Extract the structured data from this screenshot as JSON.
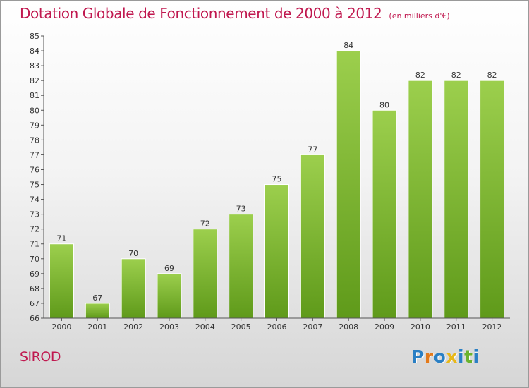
{
  "header": {
    "title": "Dotation Globale de Fonctionnement de 2000 à 2012",
    "subtitle": "(en milliers d'€)"
  },
  "footer": {
    "commune": "SIROD",
    "logo_text": "Proxiti"
  },
  "colors": {
    "title": "#c0184f",
    "bar_top": "#9ccf4d",
    "bar_bottom": "#5f9a1a",
    "logo_letters": [
      "#2a7fc4",
      "#e37a1b",
      "#2a7fc4",
      "#e8b81a",
      "#2a7fc4",
      "#6bb32e",
      "#2a7fc4"
    ]
  },
  "chart_data": {
    "type": "bar",
    "title": "Dotation Globale de Fonctionnement de 2000 à 2012",
    "subtitle": "(en milliers d'€)",
    "categories": [
      "2000",
      "2001",
      "2002",
      "2003",
      "2004",
      "2005",
      "2006",
      "2007",
      "2008",
      "2009",
      "2010",
      "2011",
      "2012"
    ],
    "values": [
      71,
      67,
      70,
      69,
      72,
      73,
      75,
      77,
      84,
      80,
      82,
      82,
      82
    ],
    "ylim": [
      66,
      85
    ],
    "yticks": [
      66,
      67,
      68,
      69,
      70,
      71,
      72,
      73,
      74,
      75,
      76,
      77,
      78,
      79,
      80,
      81,
      82,
      83,
      84,
      85
    ],
    "xlabel": "",
    "ylabel": "",
    "grid": false,
    "data_labels": true
  }
}
